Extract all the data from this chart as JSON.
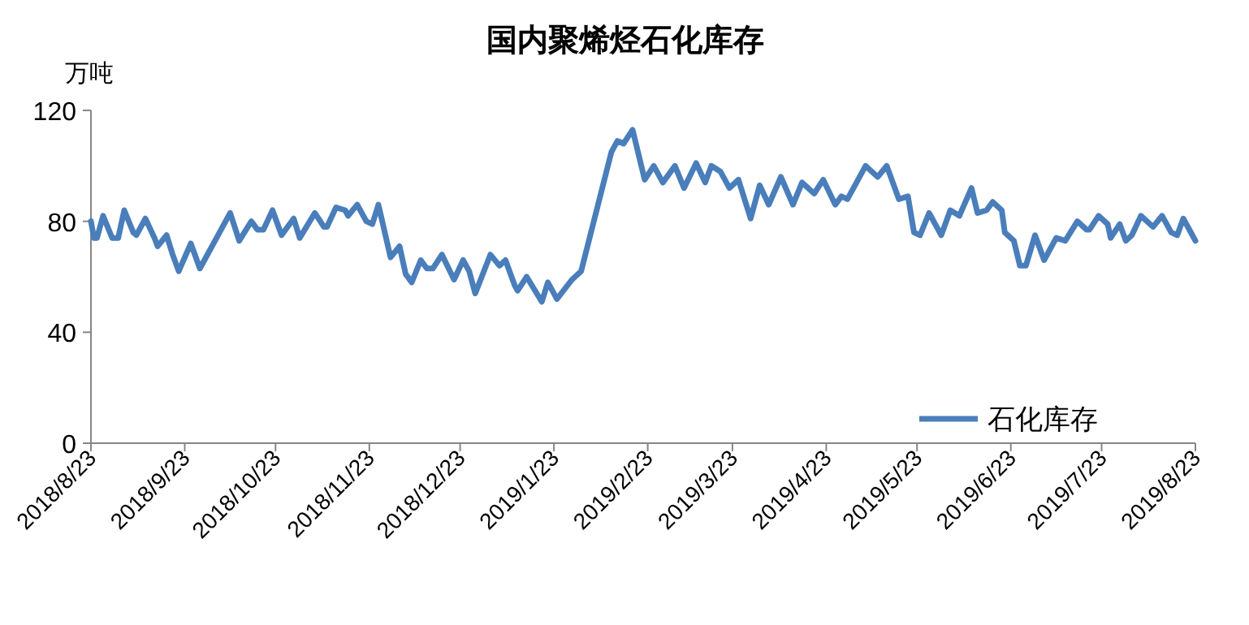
{
  "chart_data": {
    "type": "line",
    "title": "国内聚烯烃石化库存",
    "ylabel": "万吨",
    "x": [
      "2018-08-23",
      "2018-08-24",
      "2018-08-25",
      "2018-08-27",
      "2018-08-30",
      "2018-09-01",
      "2018-09-03",
      "2018-09-06",
      "2018-09-07",
      "2018-09-10",
      "2018-09-13",
      "2018-09-14",
      "2018-09-17",
      "2018-09-19",
      "2018-09-21",
      "2018-09-25",
      "2018-09-28",
      "2018-10-08",
      "2018-10-11",
      "2018-10-15",
      "2018-10-17",
      "2018-10-19",
      "2018-10-22",
      "2018-10-25",
      "2018-10-29",
      "2018-10-31",
      "2018-11-05",
      "2018-11-08",
      "2018-11-09",
      "2018-11-12",
      "2018-11-15",
      "2018-11-16",
      "2018-11-19",
      "2018-11-22",
      "2018-11-24",
      "2018-11-26",
      "2018-11-30",
      "2018-12-03",
      "2018-12-05",
      "2018-12-07",
      "2018-12-10",
      "2018-12-12",
      "2018-12-14",
      "2018-12-17",
      "2018-12-21",
      "2018-12-24",
      "2018-12-26",
      "2018-12-28",
      "2019-01-02",
      "2019-01-05",
      "2019-01-07",
      "2019-01-10",
      "2019-01-11",
      "2019-01-14",
      "2019-01-19",
      "2019-01-21",
      "2019-01-24",
      "2019-01-29",
      "2019-01-30",
      "2019-02-01",
      "2019-02-11",
      "2019-02-13",
      "2019-02-15",
      "2019-02-18",
      "2019-02-22",
      "2019-02-25",
      "2019-02-28",
      "2019-03-04",
      "2019-03-07",
      "2019-03-11",
      "2019-03-14",
      "2019-03-16",
      "2019-03-19",
      "2019-03-22",
      "2019-03-25",
      "2019-03-29",
      "2019-04-01",
      "2019-04-04",
      "2019-04-08",
      "2019-04-12",
      "2019-04-15",
      "2019-04-19",
      "2019-04-22",
      "2019-04-26",
      "2019-04-28",
      "2019-04-30",
      "2019-05-06",
      "2019-05-10",
      "2019-05-13",
      "2019-05-17",
      "2019-05-20",
      "2019-05-22",
      "2019-05-24",
      "2019-05-27",
      "2019-05-31",
      "2019-06-03",
      "2019-06-06",
      "2019-06-10",
      "2019-06-12",
      "2019-06-15",
      "2019-06-17",
      "2019-06-20",
      "2019-06-21",
      "2019-06-24",
      "2019-06-26",
      "2019-06-28",
      "2019-07-01",
      "2019-07-04",
      "2019-07-08",
      "2019-07-11",
      "2019-07-15",
      "2019-07-18",
      "2019-07-19",
      "2019-07-22",
      "2019-07-25",
      "2019-07-26",
      "2019-07-29",
      "2019-07-31",
      "2019-08-02",
      "2019-08-05",
      "2019-08-09",
      "2019-08-12",
      "2019-08-15",
      "2019-08-17",
      "2019-08-19",
      "2019-08-22",
      "2019-08-23"
    ],
    "series": [
      {
        "name": "石化库存",
        "color": "#4a7ebb",
        "values": [
          80,
          74,
          74,
          82,
          74,
          74,
          84,
          76,
          75,
          81,
          74,
          71,
          75,
          68,
          62,
          72,
          63,
          83,
          73,
          80,
          77,
          77,
          84,
          75,
          81,
          74,
          83,
          78,
          78,
          85,
          84,
          82,
          86,
          80,
          79,
          86,
          67,
          71,
          61,
          58,
          66,
          63,
          63,
          68,
          59,
          66,
          62,
          54,
          68,
          64,
          66,
          57,
          55,
          60,
          51,
          58,
          52,
          59,
          60,
          62,
          105,
          109,
          108,
          113,
          95,
          100,
          94,
          100,
          92,
          101,
          94,
          100,
          98,
          92,
          95,
          81,
          93,
          86,
          96,
          86,
          94,
          90,
          95,
          86,
          89,
          88,
          100,
          96,
          100,
          88,
          89,
          76,
          75,
          83,
          75,
          84,
          82,
          92,
          83,
          84,
          87,
          84,
          76,
          73,
          64,
          64,
          75,
          66,
          74,
          73,
          80,
          77,
          77,
          82,
          79,
          74,
          79,
          73,
          75,
          82,
          78,
          82,
          76,
          75,
          81,
          75,
          73
        ]
      }
    ],
    "xlim": [
      "2018-08-23",
      "2019-08-23"
    ],
    "xticks": [
      {
        "value": "2018-08-23",
        "label": "2018/8/23"
      },
      {
        "value": "2018-09-23",
        "label": "2018/9/23"
      },
      {
        "value": "2018-10-23",
        "label": "2018/10/23"
      },
      {
        "value": "2018-11-23",
        "label": "2018/11/23"
      },
      {
        "value": "2018-12-23",
        "label": "2018/12/23"
      },
      {
        "value": "2019-01-23",
        "label": "2019/1/23"
      },
      {
        "value": "2019-02-23",
        "label": "2019/2/23"
      },
      {
        "value": "2019-03-23",
        "label": "2019/3/23"
      },
      {
        "value": "2019-04-23",
        "label": "2019/4/23"
      },
      {
        "value": "2019-05-23",
        "label": "2019/5/23"
      },
      {
        "value": "2019-06-23",
        "label": "2019/6/23"
      },
      {
        "value": "2019-07-23",
        "label": "2019/7/23"
      },
      {
        "value": "2019-08-23",
        "label": "2019/8/23"
      }
    ],
    "ylim": [
      0,
      120
    ],
    "yticks": [
      0,
      40,
      80,
      120
    ],
    "grid": false,
    "legend": "bottom right",
    "marker": "none",
    "line_style": "solid"
  }
}
